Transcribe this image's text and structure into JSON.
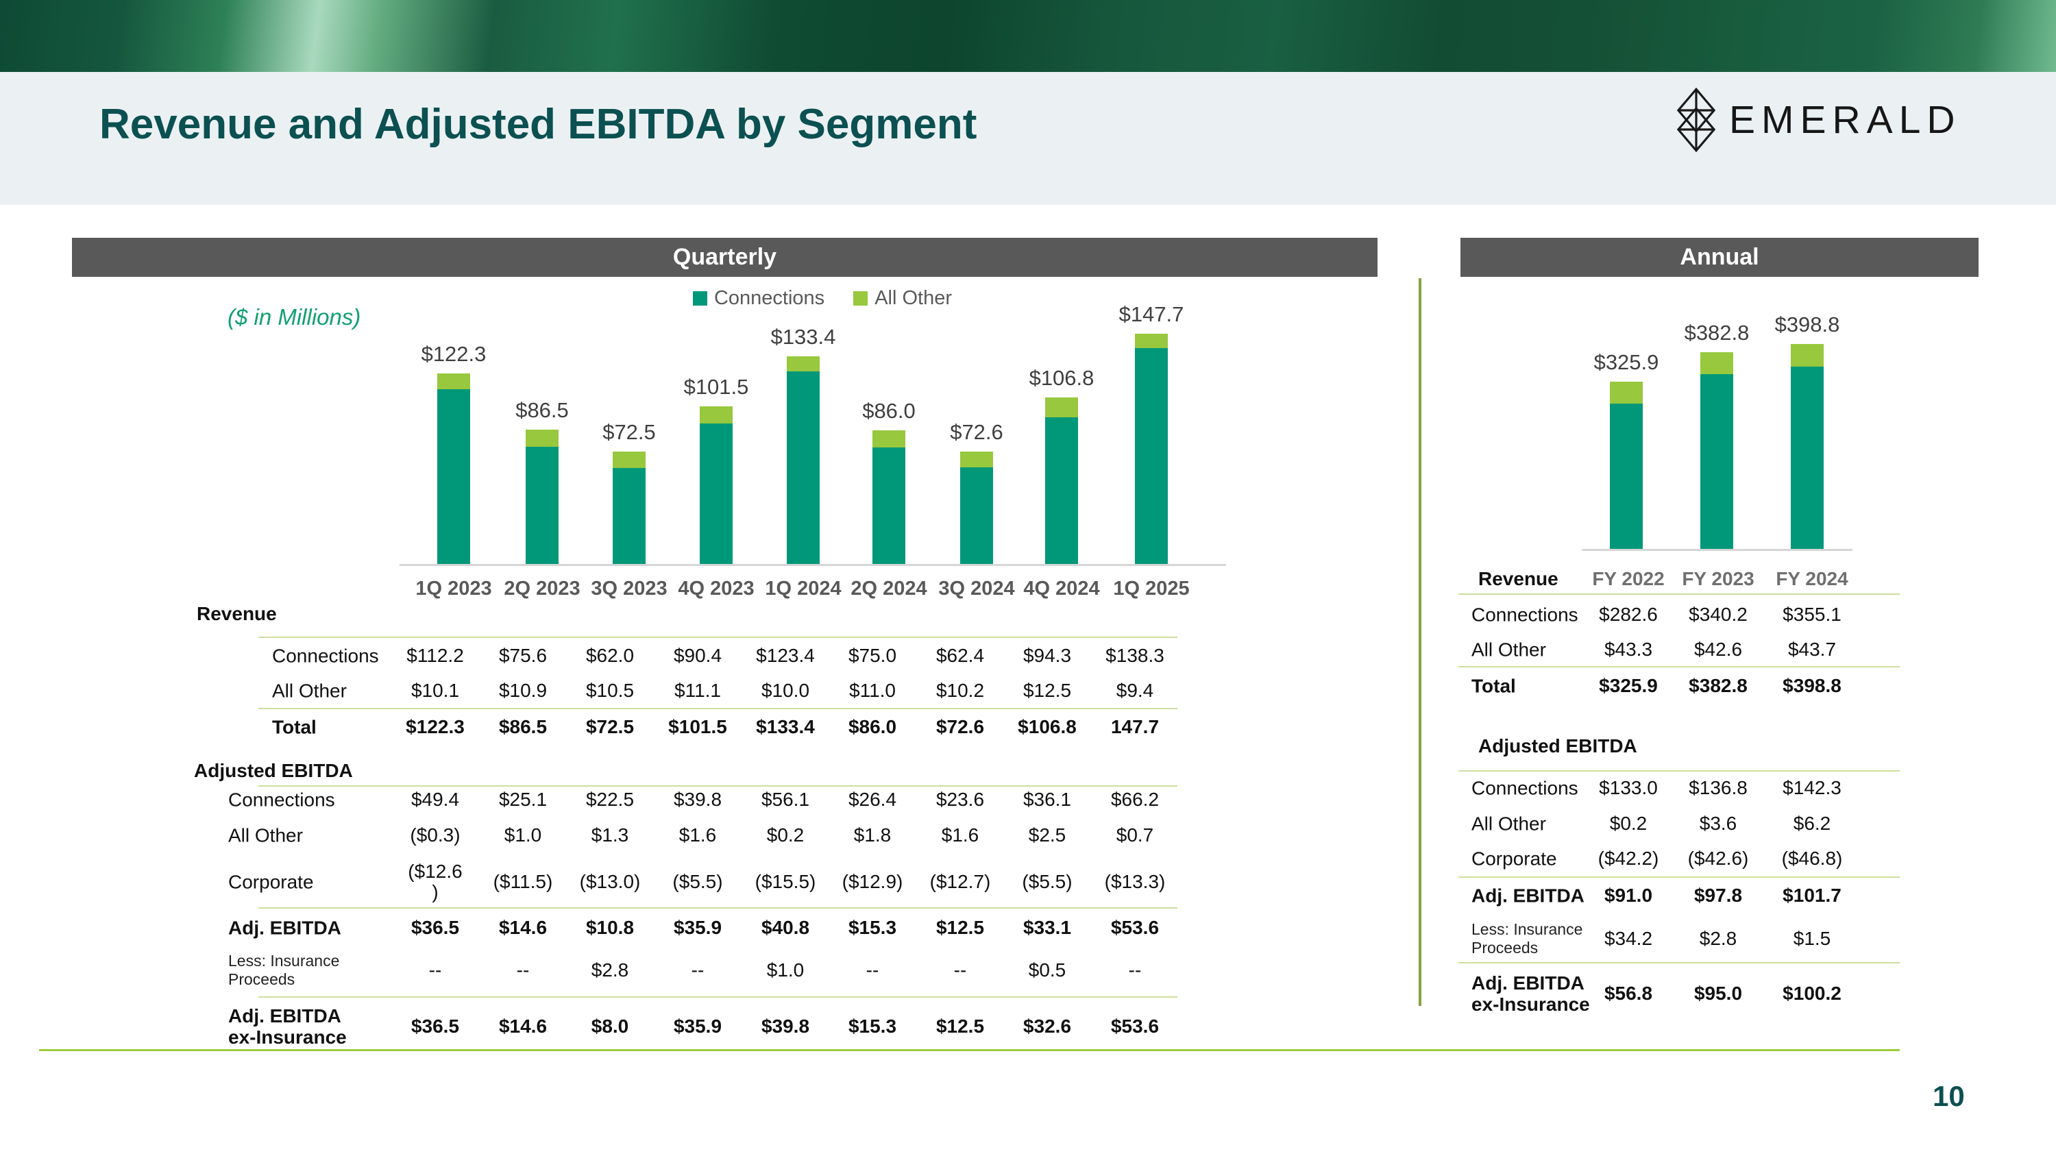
{
  "page": {
    "title": "Revenue and Adjusted EBITDA by Segment",
    "logo_text": "EMERALD",
    "page_number": "10"
  },
  "colors": {
    "connections": "#009878",
    "all_other": "#97C83E",
    "title_teal": "#0C5051",
    "panel_header_bg": "#595959",
    "units_green": "#12A06E",
    "divider_olive": "#82A23E",
    "table_rule": "#CDDE9F",
    "bottom_line": "#9CCB3C"
  },
  "chart_data": [
    {
      "type": "bar",
      "stacked": true,
      "title": "Quarterly",
      "units": "($ in Millions)",
      "categories": [
        "1Q 2023",
        "2Q 2023",
        "3Q 2023",
        "4Q 2023",
        "1Q 2024",
        "2Q 2024",
        "3Q 2024",
        "4Q 2024",
        "1Q 2025"
      ],
      "series": [
        {
          "name": "Connections",
          "color": "#009878",
          "values": [
            112.2,
            75.6,
            62.0,
            90.4,
            123.4,
            75.0,
            62.4,
            94.3,
            138.3
          ]
        },
        {
          "name": "All Other",
          "color": "#97C83E",
          "values": [
            10.1,
            10.9,
            10.5,
            11.1,
            10.0,
            11.0,
            10.2,
            12.5,
            9.4
          ]
        }
      ],
      "totals": [
        122.3,
        86.5,
        72.5,
        101.5,
        133.4,
        86.0,
        72.6,
        106.8,
        147.7
      ],
      "total_labels": [
        "$122.3",
        "$86.5",
        "$72.5",
        "$101.5",
        "$133.4",
        "$86.0",
        "$72.6",
        "$106.8",
        "$147.7"
      ],
      "legend_position": "top",
      "y_axis": "hidden"
    },
    {
      "type": "bar",
      "stacked": true,
      "title": "Annual",
      "categories": [
        "FY 2022",
        "FY 2023",
        "FY 2024"
      ],
      "series": [
        {
          "name": "Connections",
          "color": "#009878",
          "values": [
            282.6,
            340.2,
            355.1
          ]
        },
        {
          "name": "All Other",
          "color": "#97C83E",
          "values": [
            43.3,
            42.6,
            43.7
          ]
        }
      ],
      "totals": [
        325.9,
        382.8,
        398.8
      ],
      "total_labels": [
        "$325.9",
        "$382.8",
        "$398.8"
      ],
      "legend_position": "none",
      "y_axis": "hidden"
    }
  ],
  "quarterly": {
    "panel_title": "Quarterly",
    "units_note": "($ in Millions)",
    "legend": [
      {
        "label": "Connections",
        "color": "#009878"
      },
      {
        "label": "All Other",
        "color": "#97C83E"
      }
    ],
    "table": {
      "sections": [
        {
          "title": "Revenue",
          "rows": [
            {
              "label": "Connections",
              "style": "normal",
              "values": [
                "$112.2",
                "$75.6",
                "$62.0",
                "$90.4",
                "$123.4",
                "$75.0",
                "$62.4",
                "$94.3",
                "$138.3"
              ]
            },
            {
              "label": "All Other",
              "style": "normal",
              "values": [
                "$10.1",
                "$10.9",
                "$10.5",
                "$11.1",
                "$10.0",
                "$11.0",
                "$10.2",
                "$12.5",
                "$9.4"
              ]
            },
            {
              "label": "Total",
              "style": "bold",
              "values": [
                "$122.3",
                "$86.5",
                "$72.5",
                "$101.5",
                "$133.4",
                "$86.0",
                "$72.6",
                "$106.8",
                "147.7"
              ]
            }
          ]
        },
        {
          "title": "Adjusted EBITDA",
          "rows": [
            {
              "label": "Connections",
              "style": "normal",
              "values": [
                "$49.4",
                "$25.1",
                "$22.5",
                "$39.8",
                "$56.1",
                "$26.4",
                "$23.6",
                "$36.1",
                "$66.2"
              ]
            },
            {
              "label": "All Other",
              "style": "normal",
              "values": [
                "($0.3)",
                "$1.0",
                "$1.3",
                "$1.6",
                "$0.2",
                "$1.8",
                "$1.6",
                "$2.5",
                "$0.7"
              ]
            },
            {
              "label": "Corporate",
              "style": "normal",
              "values": [
                "($12.6\n)",
                "($11.5)",
                "($13.0)",
                "($5.5)",
                "($15.5)",
                "($12.9)",
                "($12.7)",
                "($5.5)",
                "($13.3)"
              ]
            },
            {
              "label": "Adj. EBITDA",
              "style": "bold",
              "values": [
                "$36.5",
                "$14.6",
                "$10.8",
                "$35.9",
                "$40.8",
                "$15.3",
                "$12.5",
                "$33.1",
                "$53.6"
              ]
            },
            {
              "label": "Less: Insurance\nProceeds",
              "style": "small",
              "values": [
                "--",
                "--",
                "$2.8",
                "--",
                "$1.0",
                "--",
                "--",
                "$0.5",
                "--"
              ]
            },
            {
              "label": "Adj. EBITDA\nex-Insurance",
              "style": "bold",
              "values": [
                "$36.5",
                "$14.6",
                "$8.0",
                "$35.9",
                "$39.8",
                "$15.3",
                "$12.5",
                "$32.6",
                "$53.6"
              ]
            }
          ]
        }
      ]
    }
  },
  "annual": {
    "panel_title": "Annual",
    "table": {
      "header": {
        "label": "Revenue",
        "cols": [
          "FY 2022",
          "FY 2023",
          "FY 2024"
        ]
      },
      "sections": [
        {
          "title": "",
          "rows": [
            {
              "label": "Connections",
              "style": "normal",
              "values": [
                "$282.6",
                "$340.2",
                "$355.1"
              ]
            },
            {
              "label": "All Other",
              "style": "normal",
              "values": [
                "$43.3",
                "$42.6",
                "$43.7"
              ]
            },
            {
              "label": "Total",
              "style": "bold",
              "values": [
                "$325.9",
                "$382.8",
                "$398.8"
              ]
            }
          ]
        },
        {
          "title": "Adjusted EBITDA",
          "rows": [
            {
              "label": "Connections",
              "style": "normal",
              "values": [
                "$133.0",
                "$136.8",
                "$142.3"
              ]
            },
            {
              "label": "All Other",
              "style": "normal",
              "values": [
                "$0.2",
                "$3.6",
                "$6.2"
              ]
            },
            {
              "label": "Corporate",
              "style": "normal",
              "values": [
                "($42.2)",
                "($42.6)",
                "($46.8)"
              ]
            },
            {
              "label": "Adj. EBITDA",
              "style": "bold",
              "values": [
                "$91.0",
                "$97.8",
                "$101.7"
              ]
            },
            {
              "label": "Less: Insurance\nProceeds",
              "style": "small",
              "values": [
                "$34.2",
                "$2.8",
                "$1.5"
              ]
            },
            {
              "label": "Adj. EBITDA\nex-Insurance",
              "style": "bold",
              "values": [
                "$56.8",
                "$95.0",
                "$100.2"
              ]
            }
          ]
        }
      ]
    }
  }
}
